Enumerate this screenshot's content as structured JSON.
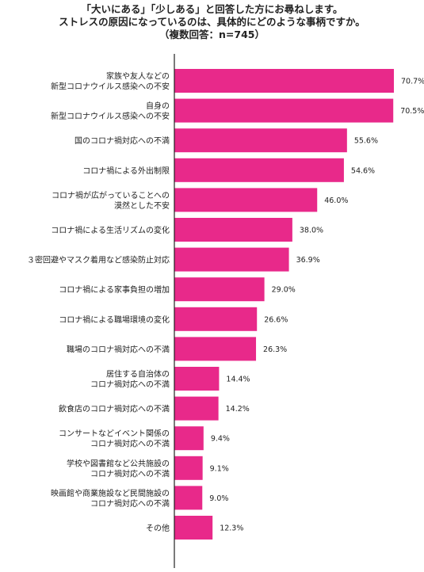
{
  "title_lines": [
    "「大いにある」「少しある」と回答した方にお尋ねします。",
    "ストレスの原因になっているのは、具体的にどのような事柄ですか。",
    "（複数回答：n=745）"
  ],
  "chart_data": {
    "type": "bar",
    "orientation": "horizontal",
    "bar_color": "#e8298a",
    "categories": [
      [
        "家族や友人などの",
        "新型コロナウイルス感染への不安"
      ],
      [
        "自身の",
        "新型コロナウイルス感染への不安"
      ],
      [
        "国のコロナ禍対応への不満"
      ],
      [
        "コロナ禍による外出制限"
      ],
      [
        "コロナ禍が広がっていることへの",
        "漠然とした不安"
      ],
      [
        "コロナ禍による生活リズムの変化"
      ],
      [
        "３密回避やマスク着用など感染防止対応"
      ],
      [
        "コロナ禍による家事負担の増加"
      ],
      [
        "コロナ禍による職場環境の変化"
      ],
      [
        "職場のコロナ禍対応への不満"
      ],
      [
        "居住する自治体の",
        "コロナ禍対応への不満"
      ],
      [
        "飲食店のコロナ禍対応への不満"
      ],
      [
        "コンサートなどイベント関係の",
        "コロナ禍対応への不満"
      ],
      [
        "学校や図書館など公共施設の",
        "コロナ禍対応への不満"
      ],
      [
        "映画館や商業施設など民間施設の",
        "コロナ禍対応への不満"
      ],
      [
        "その他"
      ]
    ],
    "values": [
      70.7,
      70.5,
      55.6,
      54.6,
      46.0,
      38.0,
      36.9,
      29.0,
      26.6,
      26.3,
      14.4,
      14.2,
      9.4,
      9.1,
      9.0,
      12.3
    ],
    "value_labels": [
      "70.7%",
      "70.5%",
      "55.6%",
      "54.6%",
      "46.0%",
      "38.0%",
      "36.9%",
      "29.0%",
      "26.6%",
      "26.3%",
      "14.4%",
      "14.2%",
      "9.4%",
      "9.1%",
      "9.0%",
      "12.3%"
    ],
    "xlim": [
      0,
      75
    ],
    "grid": false
  }
}
